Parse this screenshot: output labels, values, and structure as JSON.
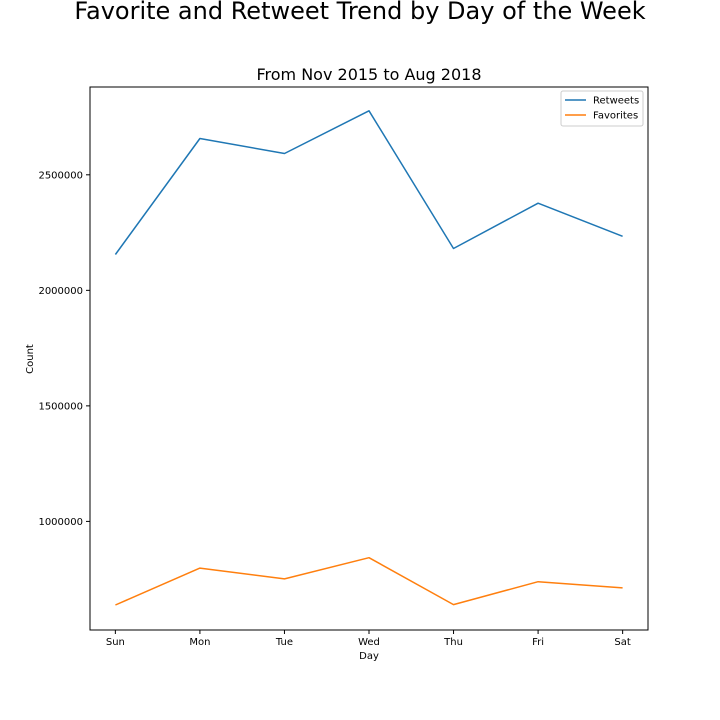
{
  "chart_data": {
    "type": "line",
    "title": "Favorite and Retweet Trend by Day of the Week",
    "subtitle": "From Nov 2015 to Aug 2018",
    "xlabel": "Day",
    "ylabel": "Count",
    "categories": [
      "Sun",
      "Mon",
      "Tue",
      "Wed",
      "Thu",
      "Fri",
      "Sat"
    ],
    "ylim": [
      530000,
      2880000
    ],
    "yticks": [
      1000000,
      1500000,
      2000000,
      2500000
    ],
    "ytick_labels": [
      "1000000",
      "1500000",
      "2000000",
      "2500000"
    ],
    "grid": false,
    "legend_position": "top-right",
    "series": [
      {
        "name": "Retweets",
        "color": "#1f77b4",
        "values": [
          2155000,
          2657000,
          2592000,
          2777000,
          2181000,
          2377000,
          2234000
        ]
      },
      {
        "name": "Favorites",
        "color": "#ff7f0e",
        "values": [
          638000,
          798000,
          751000,
          843000,
          640000,
          739000,
          712000
        ]
      }
    ]
  }
}
